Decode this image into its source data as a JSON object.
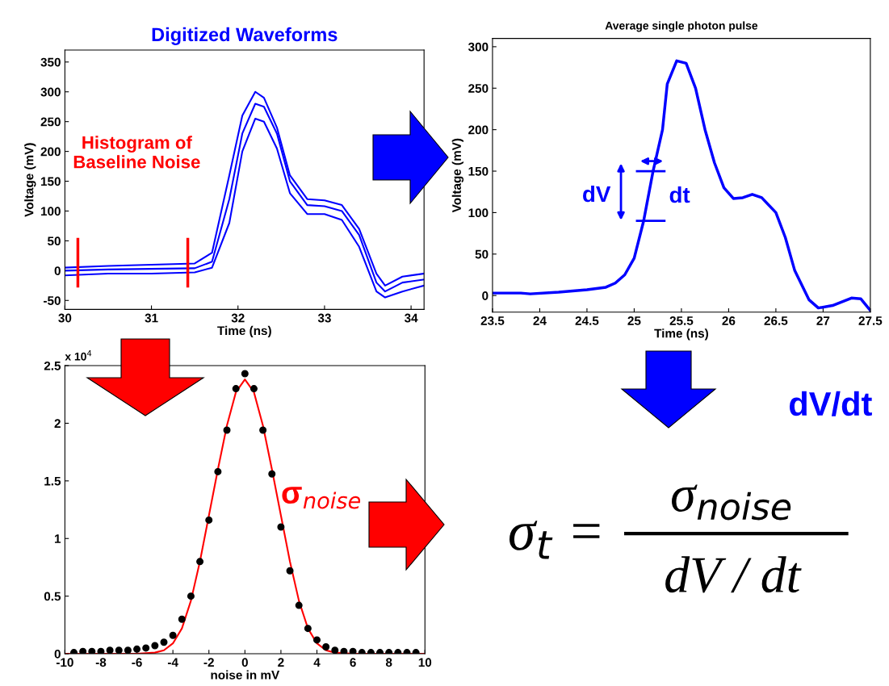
{
  "chart_data": [
    {
      "type": "line",
      "title": "Digitized Waveforms",
      "xlabel": "Time (ns)",
      "ylabel": "Voltage (mV)",
      "xlim": [
        30,
        34.15
      ],
      "ylim": [
        -65,
        370
      ],
      "xticks": [
        30,
        31,
        32,
        33,
        34
      ],
      "yticks": [
        -50,
        0,
        50,
        100,
        150,
        200,
        250,
        300,
        350
      ],
      "grid": false,
      "legend": false,
      "series": [
        {
          "color": "#0000ff",
          "x": [
            30,
            30.5,
            31,
            31.5,
            31.7,
            31.9,
            32.05,
            32.2,
            32.3,
            32.45,
            32.6,
            32.8,
            33.0,
            33.2,
            33.4,
            33.6,
            33.7,
            33.9,
            34.15
          ],
          "values": [
            5,
            8,
            10,
            12,
            30,
            160,
            260,
            300,
            290,
            240,
            160,
            120,
            118,
            110,
            70,
            -5,
            -25,
            -10,
            -5
          ]
        },
        {
          "color": "#0000ff",
          "x": [
            30,
            30.5,
            31,
            31.5,
            31.7,
            31.9,
            32.05,
            32.2,
            32.3,
            32.45,
            32.6,
            32.8,
            33.0,
            33.2,
            33.4,
            33.6,
            33.7,
            33.9,
            34.15
          ],
          "values": [
            0,
            2,
            3,
            4,
            15,
            120,
            230,
            280,
            275,
            230,
            150,
            110,
            108,
            100,
            60,
            -20,
            -35,
            -20,
            -15
          ]
        },
        {
          "color": "#0000ff",
          "x": [
            30,
            30.5,
            31,
            31.5,
            31.7,
            31.9,
            32.05,
            32.2,
            32.3,
            32.45,
            32.6,
            32.8,
            33.0,
            33.2,
            33.4,
            33.6,
            33.7,
            33.9,
            34.15
          ],
          "values": [
            -8,
            -5,
            -5,
            -3,
            5,
            80,
            200,
            255,
            250,
            205,
            130,
            95,
            95,
            85,
            40,
            -35,
            -45,
            -35,
            -25
          ]
        }
      ],
      "ref_lines": [
        {
          "axis": "x",
          "value": 30.15,
          "color": "#ff0000"
        },
        {
          "axis": "x",
          "value": 31.42,
          "color": "#ff0000"
        }
      ],
      "annotations": [
        "Histogram of\nBaseline Noise"
      ]
    },
    {
      "type": "line",
      "title": "Average single photon pulse",
      "xlabel": "Time (ns)",
      "ylabel": "Voltage (mV)",
      "xlim": [
        23.5,
        27.5
      ],
      "ylim": [
        -20,
        310
      ],
      "xticks": [
        23.5,
        24,
        24.5,
        25,
        25.5,
        26,
        26.5,
        27,
        27.5
      ],
      "yticks": [
        0,
        50,
        100,
        150,
        200,
        250,
        300
      ],
      "grid": false,
      "legend": false,
      "series": [
        {
          "color": "#0000ff",
          "x": [
            23.5,
            23.8,
            23.9,
            24.2,
            24.5,
            24.7,
            24.8,
            24.9,
            25.0,
            25.1,
            25.2,
            25.3,
            25.35,
            25.45,
            25.55,
            25.65,
            25.75,
            25.85,
            25.95,
            26.05,
            26.15,
            26.25,
            26.35,
            26.5,
            26.6,
            26.7,
            26.85,
            26.95,
            27.1,
            27.3,
            27.4,
            27.5
          ],
          "values": [
            3,
            3,
            2,
            4,
            7,
            10,
            15,
            25,
            45,
            90,
            150,
            200,
            255,
            283,
            280,
            250,
            200,
            160,
            130,
            117,
            118,
            122,
            118,
            100,
            70,
            30,
            -5,
            -15,
            -12,
            -3,
            -4,
            -18
          ]
        }
      ],
      "annotations": [
        "dV",
        "dt"
      ]
    },
    {
      "type": "scatter",
      "xlabel": "noise in mV",
      "xlim": [
        -10,
        10
      ],
      "ylim": [
        0,
        2.5
      ],
      "xticks": [
        -10,
        -8,
        -6,
        -4,
        -2,
        0,
        2,
        4,
        6,
        8,
        10
      ],
      "yticks": [
        0,
        0.5,
        1,
        1.5,
        2,
        2.5
      ],
      "grid": false,
      "legend": false,
      "marker": "circle",
      "series": [
        {
          "type": "scatter",
          "color": "#000000",
          "x": [
            -9.5,
            -9,
            -8.5,
            -8,
            -7.5,
            -7,
            -6.5,
            -6,
            -5.5,
            -5,
            -4.5,
            -4,
            -3.5,
            -3,
            -2.5,
            -2,
            -1.5,
            -1,
            -0.5,
            0,
            0.5,
            1,
            1.5,
            2,
            2.5,
            3,
            3.5,
            4,
            4.5,
            5,
            5.5,
            6,
            6.5,
            7,
            7.5,
            8,
            8.5,
            9,
            9.5
          ],
          "values": [
            0.01,
            0.02,
            0.02,
            0.02,
            0.03,
            0.03,
            0.03,
            0.04,
            0.05,
            0.07,
            0.1,
            0.16,
            0.3,
            0.5,
            0.8,
            1.16,
            1.58,
            1.94,
            2.3,
            2.43,
            2.3,
            1.94,
            1.56,
            1.1,
            0.72,
            0.42,
            0.22,
            0.12,
            0.06,
            0.03,
            0.02,
            0.02,
            0.01,
            0.01,
            0.01,
            0.01,
            0.01,
            0.01,
            0.01
          ]
        },
        {
          "type": "line",
          "color": "#ff0000",
          "marker": "none",
          "x": [
            -10,
            -6,
            -5,
            -4.5,
            -4,
            -3.5,
            -3,
            -2.5,
            -2,
            -1.5,
            -1,
            -0.5,
            0,
            0.5,
            1,
            1.5,
            2,
            2.5,
            3,
            3.5,
            4,
            4.5,
            5,
            6,
            10
          ],
          "values": [
            0,
            0,
            0.01,
            0.03,
            0.09,
            0.22,
            0.46,
            0.8,
            1.2,
            1.6,
            1.98,
            2.27,
            2.38,
            2.27,
            1.98,
            1.6,
            1.2,
            0.8,
            0.46,
            0.22,
            0.09,
            0.03,
            0.01,
            0,
            0
          ]
        }
      ],
      "annotations": [
        "x 10$^{4}$",
        "σ$_{noise}$"
      ]
    },
    {
      "type": "other",
      "annotations": [
        "dV/dt",
        "σ$_{t}$ =",
        "σ$_{noise}$",
        "dV / dt"
      ]
    }
  ]
}
